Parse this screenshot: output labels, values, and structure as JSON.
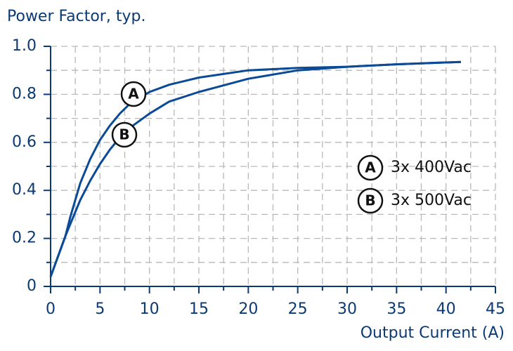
{
  "chart_data": {
    "type": "line",
    "title": "Power Factor, typ.",
    "x_label": "Output Current (A)",
    "x": [
      0,
      1.5,
      2,
      3,
      4,
      5,
      6,
      7,
      8,
      10,
      12,
      15,
      20,
      25,
      30,
      35,
      41.5
    ],
    "series": [
      {
        "name": "3x 400Vac",
        "marker": "A",
        "color": "#0b4a96",
        "values": [
          0.04,
          0.21,
          0.29,
          0.43,
          0.53,
          0.61,
          0.67,
          0.72,
          0.76,
          0.81,
          0.84,
          0.87,
          0.9,
          0.91,
          0.915,
          0.925,
          0.935
        ]
      },
      {
        "name": "3x 500Vac",
        "marker": "B",
        "color": "#0b4a96",
        "values": [
          0.04,
          0.21,
          0.26,
          0.36,
          0.44,
          0.51,
          0.57,
          0.62,
          0.66,
          0.72,
          0.77,
          0.81,
          0.865,
          0.9,
          0.915,
          0.925,
          0.935
        ]
      }
    ],
    "xlim": [
      0,
      45
    ],
    "ylim": [
      0,
      1
    ],
    "xticks": [
      0,
      5,
      10,
      15,
      20,
      25,
      30,
      35,
      40,
      45
    ],
    "yticks": [
      0,
      0.2,
      0.4,
      0.6,
      0.8,
      {
        "value": 1,
        "label": "1.0"
      }
    ],
    "x_minor_ticks": [
      2.5,
      7.5,
      12.5,
      17.5,
      22.5,
      27.5,
      32.5,
      37.5,
      42.5
    ],
    "y_minor_ticks": [
      0.1,
      0.3,
      0.5,
      0.7,
      0.9
    ],
    "grid": true
  }
}
